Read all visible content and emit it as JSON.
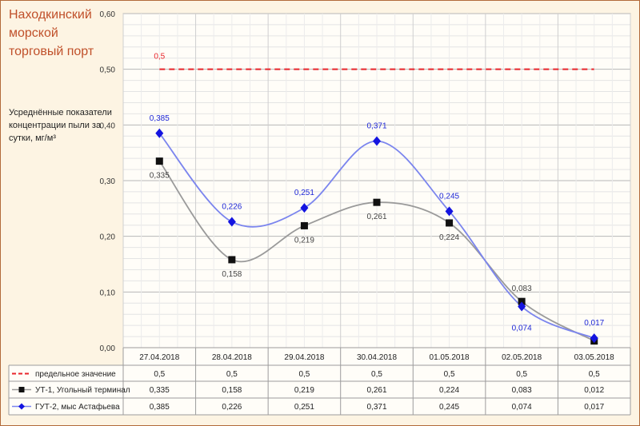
{
  "title": "Находкинский морской торговый порт",
  "subtitle": "Усреднённые показатели концентрации пыли за сутки, мг/м³",
  "colors": {
    "limit": "#e8242a",
    "ut1": "#9a9a9a",
    "ut1_marker": "#111111",
    "gut2": "#7b85ee",
    "gut2_marker": "#1414e0",
    "background": "#fdf4e3",
    "border": "#b26a3a",
    "title": "#c0502a"
  },
  "chart_data": {
    "type": "line",
    "categories": [
      "27.04.2018",
      "28.04.2018",
      "29.04.2018",
      "30.04.2018",
      "01.05.2018",
      "02.05.2018",
      "03.05.2018"
    ],
    "ylim": [
      0,
      0.6
    ],
    "yticks": [
      "0,00",
      "0,10",
      "0,20",
      "0,30",
      "0,40",
      "0,50",
      "0,60"
    ],
    "grid": true,
    "legend": "data-table-left",
    "series": [
      {
        "name": "предельное значение",
        "values": [
          0.5,
          0.5,
          0.5,
          0.5,
          0.5,
          0.5,
          0.5
        ],
        "labels": [
          "0,5",
          "0,5",
          "0,5",
          "0,5",
          "0,5",
          "0,5",
          "0,5"
        ],
        "style": "dashed"
      },
      {
        "name": "УТ-1, Угольный терминал",
        "values": [
          0.335,
          0.158,
          0.219,
          0.261,
          0.224,
          0.083,
          0.012
        ],
        "labels": [
          "0,335",
          "0,158",
          "0,219",
          "0,261",
          "0,224",
          "0,083",
          "0,012"
        ],
        "marker": "square"
      },
      {
        "name": "ГУТ-2, мыс Астафьева",
        "values": [
          0.385,
          0.226,
          0.251,
          0.371,
          0.245,
          0.074,
          0.017
        ],
        "labels": [
          "0,385",
          "0,226",
          "0,251",
          "0,371",
          "0,245",
          "0,074",
          "0,017"
        ],
        "marker": "diamond"
      }
    ],
    "annotations": [
      {
        "text": "0,5",
        "series": 0
      }
    ]
  }
}
